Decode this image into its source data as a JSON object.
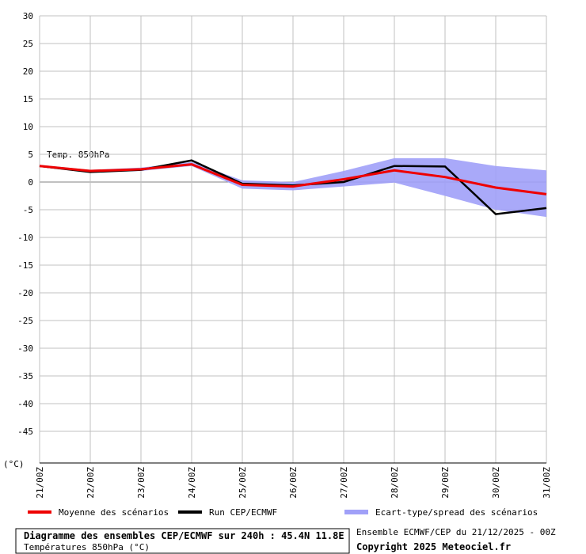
{
  "chart_data": {
    "type": "line",
    "annotation": "Temp. 850hPa",
    "y_label": "(°C)",
    "categories": [
      "21/00Z",
      "22/00Z",
      "23/00Z",
      "24/00Z",
      "25/00Z",
      "26/00Z",
      "27/00Z",
      "28/00Z",
      "29/00Z",
      "30/00Z",
      "31/00Z"
    ],
    "ylim": [
      -50,
      30
    ],
    "yticks": [
      -45,
      -40,
      -35,
      -30,
      -25,
      -20,
      -15,
      -10,
      -5,
      0,
      5,
      10,
      15,
      20,
      25,
      30
    ],
    "grid": true,
    "series": [
      {
        "name": "Moyenne des scénarios",
        "color": "#ee0000",
        "values": [
          2.9,
          2.0,
          2.3,
          3.2,
          -0.5,
          -0.8,
          0.5,
          2.1,
          0.9,
          -1.0,
          -2.2
        ]
      },
      {
        "name": "Run CEP/ECMWF",
        "color": "#000000",
        "values": [
          2.9,
          1.8,
          2.2,
          3.9,
          -0.3,
          -0.6,
          0.0,
          2.9,
          2.8,
          -5.8,
          -4.7
        ]
      },
      {
        "name": "Ecart-type/spread des scénarios",
        "color": "#a0a0f8",
        "upper": [
          3.1,
          2.2,
          2.6,
          3.6,
          0.3,
          0.0,
          2.0,
          4.3,
          4.3,
          2.9,
          2.1
        ],
        "lower": [
          2.7,
          1.7,
          2.0,
          2.9,
          -1.2,
          -1.5,
          -0.8,
          -0.1,
          -2.5,
          -5.0,
          -6.3
        ]
      }
    ],
    "footer": {
      "title": "Diagramme des ensembles CEP/ECMWF sur 240h : 45.4N 11.8E",
      "subtitle": "Températures 850hPa (°C)",
      "run": "Ensemble ECMWF/CEP du 21/12/2025 - 00Z",
      "copyright": "Copyright 2025 Meteociel.fr"
    }
  }
}
